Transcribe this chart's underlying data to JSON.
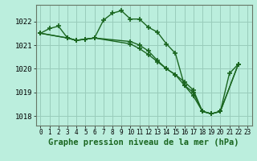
{
  "background_color": "#bbeedd",
  "grid_color": "#99ccbb",
  "line_color": "#1a6620",
  "xlabel": "Graphe pression niveau de la mer (hPa)",
  "xlabel_fontsize": 7.5,
  "tick_fontsize": 6.5,
  "ylim": [
    1017.6,
    1022.7
  ],
  "yticks": [
    1018,
    1019,
    1020,
    1021,
    1022
  ],
  "xlim": [
    -0.5,
    23.5
  ],
  "xticks": [
    0,
    1,
    2,
    3,
    4,
    5,
    6,
    7,
    8,
    9,
    10,
    11,
    12,
    13,
    14,
    15,
    16,
    17,
    18,
    19,
    20,
    21,
    22,
    23
  ],
  "series": [
    {
      "x": [
        0,
        1,
        2,
        3,
        4,
        5,
        6,
        7,
        8,
        9,
        10,
        11,
        12,
        13,
        14,
        15,
        16,
        17,
        18,
        19,
        20,
        21,
        22
      ],
      "y": [
        1021.5,
        1021.7,
        1021.8,
        1021.3,
        1021.2,
        1021.25,
        1021.3,
        1022.05,
        1022.35,
        1022.45,
        1022.1,
        1022.1,
        1021.75,
        1021.55,
        1021.05,
        1020.65,
        1019.3,
        1019.0,
        1018.2,
        1018.1,
        1018.2,
        1019.8,
        1020.2
      ]
    },
    {
      "x": [
        0,
        3,
        4,
        5,
        6,
        10,
        11,
        12,
        13,
        14,
        15,
        16,
        17,
        18,
        19,
        20,
        22
      ],
      "y": [
        1021.5,
        1021.3,
        1021.2,
        1021.25,
        1021.3,
        1021.05,
        1020.85,
        1020.6,
        1020.3,
        1020.0,
        1019.75,
        1019.45,
        1019.1,
        1018.2,
        1018.1,
        1018.2,
        1020.2
      ]
    },
    {
      "x": [
        0,
        3,
        4,
        5,
        6,
        10,
        11,
        12,
        13,
        14,
        15,
        16,
        17,
        18,
        19,
        20,
        22
      ],
      "y": [
        1021.5,
        1021.3,
        1021.2,
        1021.25,
        1021.3,
        1021.15,
        1021.0,
        1020.75,
        1020.35,
        1020.0,
        1019.75,
        1019.3,
        1018.85,
        1018.2,
        1018.1,
        1018.2,
        1020.2
      ]
    }
  ]
}
